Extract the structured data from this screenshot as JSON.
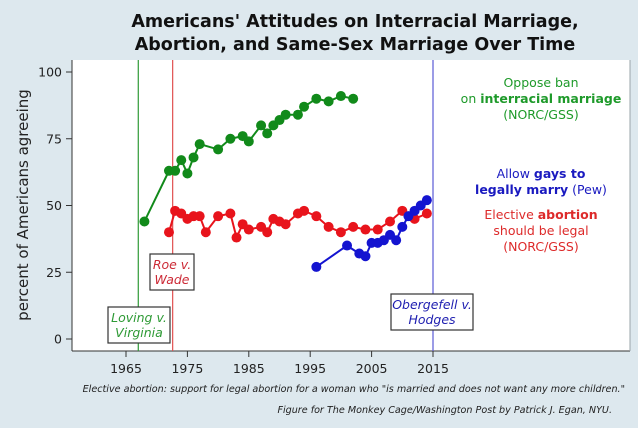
{
  "chart_data": {
    "type": "line",
    "title_lines": [
      "Americans' Attitudes on Interracial Marriage,",
      "Abortion, and Same-Sex Marriage Over Time"
    ],
    "xlabel": "",
    "ylabel": "percent of Americans agreeing",
    "xlim": [
      1960,
      2025
    ],
    "ylim": [
      0,
      100
    ],
    "xticks": [
      1965,
      1975,
      1985,
      1995,
      2005,
      2015
    ],
    "yticks": [
      0,
      25,
      50,
      75,
      100
    ],
    "grid": false,
    "series": [
      {
        "name": "Oppose ban on interracial marriage (NORC/GSS)",
        "color": "#118a1a",
        "x": [
          1968,
          1972,
          1973,
          1974,
          1975,
          1976,
          1977,
          1980,
          1982,
          1984,
          1985,
          1987,
          1988,
          1989,
          1990,
          1991,
          1993,
          1994,
          1996,
          1998,
          2000,
          2002
        ],
        "y": [
          44,
          63,
          63,
          67,
          62,
          68,
          73,
          71,
          75,
          76,
          74,
          80,
          77,
          80,
          82,
          84,
          84,
          87,
          90,
          89,
          91,
          90
        ]
      },
      {
        "name": "Elective abortion should be legal (NORC/GSS)",
        "color": "#e8141c",
        "x": [
          1972,
          1973,
          1974,
          1975,
          1976,
          1977,
          1978,
          1980,
          1982,
          1983,
          1984,
          1985,
          1987,
          1988,
          1989,
          1990,
          1991,
          1993,
          1994,
          1996,
          1998,
          2000,
          2002,
          2004,
          2006,
          2008,
          2010,
          2012,
          2014
        ],
        "y": [
          40,
          48,
          47,
          45,
          46,
          46,
          40,
          46,
          47,
          38,
          43,
          41,
          42,
          40,
          45,
          44,
          43,
          47,
          48,
          46,
          42,
          40,
          42,
          41,
          41,
          44,
          48,
          45,
          47
        ]
      },
      {
        "name": "Allow gays to legally marry (Pew)",
        "color": "#1414d0",
        "x": [
          1996,
          2001,
          2003,
          2004,
          2005,
          2006,
          2007,
          2008,
          2009,
          2010,
          2011,
          2012,
          2013,
          2014
        ],
        "y": [
          27,
          35,
          32,
          31,
          36,
          36,
          37,
          39,
          37,
          42,
          46,
          48,
          50,
          52
        ]
      }
    ],
    "events": [
      {
        "year": 1967,
        "label_lines": [
          "Loving v.",
          "Virginia"
        ],
        "color": "#2e9a35",
        "box_color": "#2e9a35"
      },
      {
        "year": 1972.6,
        "label_lines": [
          "Roe v.",
          "Wade"
        ],
        "color": "#e05050",
        "box_color": "#cc2a36"
      },
      {
        "year": 2015,
        "label_lines": [
          "Obergefell v.",
          "Hodges"
        ],
        "color": "#5b5bd6",
        "box_color": "#1e1eb0"
      }
    ],
    "legend": [
      {
        "series": 0,
        "color": "#1e9a2a",
        "lines": [
          [
            {
              "t": "Oppose ban",
              "b": false
            }
          ],
          [
            {
              "t": "on ",
              "b": false
            },
            {
              "t": "interracial marriage",
              "b": true
            }
          ],
          [
            {
              "t": "(NORC/GSS)",
              "b": false
            }
          ]
        ]
      },
      {
        "series": 2,
        "color": "#1a1ac0",
        "lines": [
          [
            {
              "t": "Allow ",
              "b": false
            },
            {
              "t": "gays to",
              "b": true
            }
          ],
          [
            {
              "t": "legally marry",
              "b": true
            },
            {
              "t": " (Pew)",
              "b": false
            }
          ]
        ]
      },
      {
        "series": 1,
        "color": "#dd2a2a",
        "lines": [
          [
            {
              "t": "Elective ",
              "b": false
            },
            {
              "t": "abortion",
              "b": true
            }
          ],
          [
            {
              "t": "should be legal",
              "b": false
            }
          ],
          [
            {
              "t": "(NORC/GSS)",
              "b": false
            }
          ]
        ]
      }
    ],
    "legend_placement": "right",
    "footnotes": [
      "Elective abortion: support for legal abortion for a woman who \"is married and does not want any more children.\"",
      "Figure for The Monkey Cage/Washington Post by Patrick J. Egan, NYU."
    ]
  }
}
